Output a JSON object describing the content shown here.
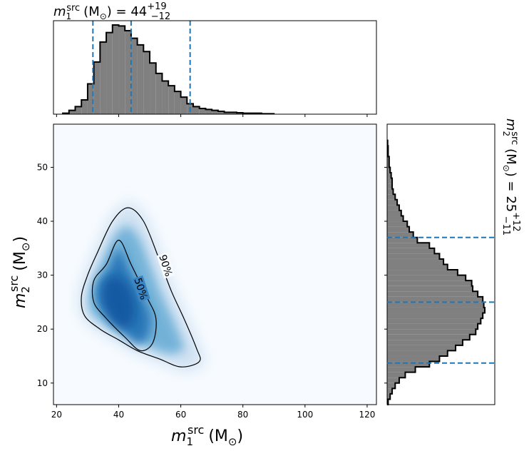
{
  "chart_data": [
    {
      "panel": "joint",
      "type": "heatmap",
      "xlabel_sym": "m",
      "xlabel_sub": "1",
      "xlabel_sup": "src",
      "xlabel_unit": "(M",
      "xlabel_unit_sub": "⊙",
      "xlabel_close": ")",
      "ylabel_sym": "m",
      "ylabel_sub": "2",
      "ylabel_sup": "src",
      "ylabel_unit": "(M",
      "ylabel_unit_sub": "⊙",
      "ylabel_close": ")",
      "xlim": [
        19,
        123
      ],
      "ylim": [
        6,
        58
      ],
      "xticks": [
        20,
        40,
        60,
        80,
        100,
        120
      ],
      "yticks": [
        10,
        20,
        30,
        40,
        50
      ],
      "density_peak": {
        "x": 40,
        "y": 25
      },
      "contours": [
        {
          "label": "50%",
          "points": [
            [
              36,
              32
            ],
            [
              40,
              36.5
            ],
            [
              44,
              32
            ],
            [
              49,
              26
            ],
            [
              52,
              22
            ],
            [
              51,
              17.5
            ],
            [
              47,
              16
            ],
            [
              42,
              18.5
            ],
            [
              36,
              22
            ],
            [
              32,
              25
            ],
            [
              32,
              29
            ]
          ]
        },
        {
          "label": "90%",
          "points": [
            [
              33,
              34
            ],
            [
              38,
              40
            ],
            [
              43,
              42.5
            ],
            [
              48,
              40
            ],
            [
              53,
              33
            ],
            [
              57,
              27
            ],
            [
              61,
              22
            ],
            [
              65,
              16.5
            ],
            [
              66,
              14
            ],
            [
              60,
              13
            ],
            [
              53,
              14.5
            ],
            [
              46,
              16
            ],
            [
              40,
              18
            ],
            [
              34,
              20
            ],
            [
              29,
              22.5
            ],
            [
              28,
              26
            ],
            [
              30,
              30
            ]
          ]
        }
      ]
    },
    {
      "panel": "marginal-x",
      "type": "bar",
      "title_sym": "m",
      "title_sub": "1",
      "title_sup": "src",
      "title_unit": "(M",
      "title_unit_sub": "⊙",
      "title_eq": ") = 44",
      "title_plus": "+19",
      "title_minus": "−12",
      "bin_edges": [
        22,
        24,
        26,
        28,
        30,
        32,
        34,
        36,
        38,
        40,
        42,
        44,
        46,
        48,
        50,
        52,
        54,
        56,
        58,
        60,
        62,
        64,
        66,
        68,
        70,
        72,
        74,
        76,
        78,
        80,
        82,
        84,
        86,
        88,
        90
      ],
      "values": [
        0.01,
        0.04,
        0.08,
        0.15,
        0.32,
        0.55,
        0.76,
        0.86,
        0.94,
        0.93,
        0.88,
        0.8,
        0.73,
        0.66,
        0.54,
        0.43,
        0.35,
        0.3,
        0.24,
        0.18,
        0.11,
        0.08,
        0.06,
        0.05,
        0.04,
        0.03,
        0.02,
        0.02,
        0.015,
        0.01,
        0.01,
        0.01,
        0.005,
        0.005
      ],
      "quantiles": [
        31.7,
        44,
        63
      ]
    },
    {
      "panel": "marginal-y",
      "type": "bar",
      "title_sym": "m",
      "title_sub": "2",
      "title_sup": "src",
      "title_unit": "(M",
      "title_unit_sub": "⊙",
      "title_eq": ") = 25",
      "title_plus": "+12",
      "title_minus": "−11",
      "bin_edges": [
        6,
        7,
        8,
        9,
        10,
        11,
        12,
        13,
        14,
        15,
        16,
        17,
        18,
        19,
        20,
        21,
        22,
        23,
        24,
        25,
        26,
        27,
        28,
        29,
        30,
        31,
        32,
        33,
        34,
        35,
        36,
        37,
        38,
        39,
        40,
        41,
        42,
        43,
        44,
        45,
        46,
        47,
        48,
        49,
        50,
        51,
        52,
        53,
        54,
        55
      ],
      "values": [
        0.01,
        0.03,
        0.05,
        0.08,
        0.12,
        0.18,
        0.28,
        0.42,
        0.52,
        0.6,
        0.68,
        0.75,
        0.82,
        0.88,
        0.9,
        0.93,
        0.95,
        0.97,
        0.96,
        0.95,
        0.9,
        0.85,
        0.84,
        0.78,
        0.7,
        0.6,
        0.56,
        0.52,
        0.47,
        0.42,
        0.3,
        0.26,
        0.22,
        0.2,
        0.16,
        0.14,
        0.12,
        0.1,
        0.08,
        0.06,
        0.05,
        0.05,
        0.04,
        0.03,
        0.02,
        0.02,
        0.01,
        0.01,
        0.005
      ],
      "quantiles": [
        13.7,
        25,
        37
      ]
    }
  ]
}
